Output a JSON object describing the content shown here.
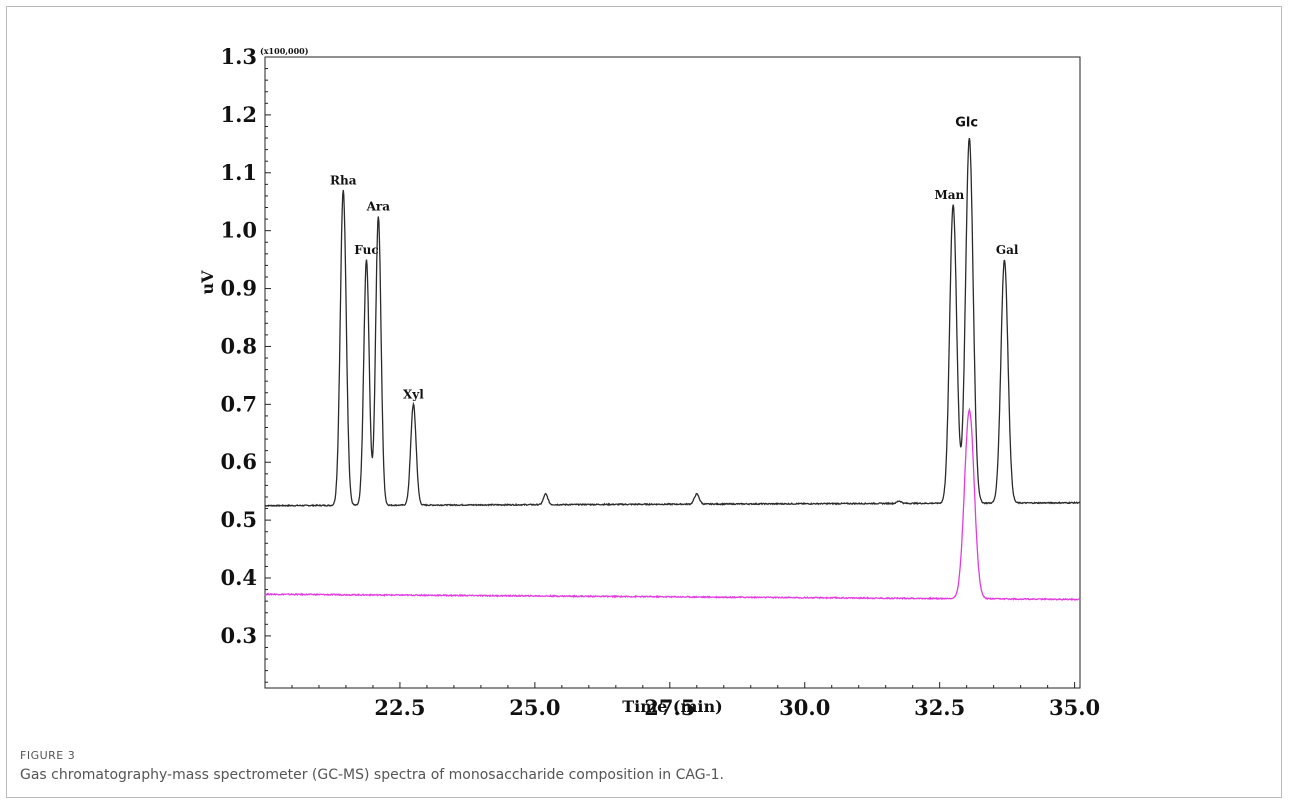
{
  "figure": {
    "label": "FIGURE 3",
    "caption": "Gas chromatography-mass spectrometer (GC-MS) spectra of monosaccharide composition in CAG-1."
  },
  "chart_data": {
    "type": "line",
    "xlabel": "Time (min)",
    "ylabel": "uV",
    "y_multiplier": "(x100,000)",
    "xlim": [
      20.0,
      35.1
    ],
    "ylim": [
      0.21,
      1.3
    ],
    "x_ticks": [
      "22.5",
      "25.0",
      "27.5",
      "30.0",
      "32.5",
      "35.0"
    ],
    "x_tick_values": [
      22.5,
      25.0,
      27.5,
      30.0,
      32.5,
      35.0
    ],
    "y_ticks": [
      "1.3",
      "1.2",
      "1.1",
      "1.0",
      "0.9",
      "0.8",
      "0.7",
      "0.6",
      "0.5",
      "0.4",
      "0.3"
    ],
    "y_tick_values": [
      1.3,
      1.2,
      1.1,
      1.0,
      0.9,
      0.8,
      0.7,
      0.6,
      0.5,
      0.4,
      0.3
    ],
    "grid": false,
    "series": [
      {
        "color": "#2b2b2b",
        "baseline": [
          [
            20.0,
            0.525
          ],
          [
            35.1,
            0.53
          ]
        ],
        "peaks": [
          {
            "x": 21.45,
            "height": 1.07,
            "width": 0.055
          },
          {
            "x": 21.88,
            "height": 0.95,
            "width": 0.05
          },
          {
            "x": 22.1,
            "height": 1.025,
            "width": 0.05
          },
          {
            "x": 22.75,
            "height": 0.7,
            "width": 0.05
          },
          {
            "x": 25.2,
            "height": 0.545,
            "width": 0.04
          },
          {
            "x": 28.0,
            "height": 0.545,
            "width": 0.045
          },
          {
            "x": 31.75,
            "height": 0.533,
            "width": 0.04
          },
          {
            "x": 32.75,
            "height": 1.045,
            "width": 0.065
          },
          {
            "x": 33.05,
            "height": 1.16,
            "width": 0.07
          },
          {
            "x": 33.7,
            "height": 0.95,
            "width": 0.065
          }
        ]
      },
      {
        "color": "#e23ce0",
        "baseline": [
          [
            20.0,
            0.372
          ],
          [
            35.1,
            0.363
          ]
        ],
        "peaks": [
          {
            "x": 33.05,
            "height": 0.69,
            "width": 0.09
          }
        ]
      }
    ],
    "annotations": [
      {
        "text": "Rha",
        "x": 21.45,
        "y": 1.08
      },
      {
        "text": "Fuc",
        "x": 21.88,
        "y": 0.96
      },
      {
        "text": "Ara",
        "x": 22.1,
        "y": 1.035
      },
      {
        "text": "Xyl",
        "x": 22.75,
        "y": 0.71
      },
      {
        "text": "Man",
        "x": 32.68,
        "y": 1.055
      },
      {
        "text": "Glc",
        "x": 33.0,
        "y": 1.18
      },
      {
        "text": "Gal",
        "x": 33.75,
        "y": 0.96
      }
    ]
  }
}
